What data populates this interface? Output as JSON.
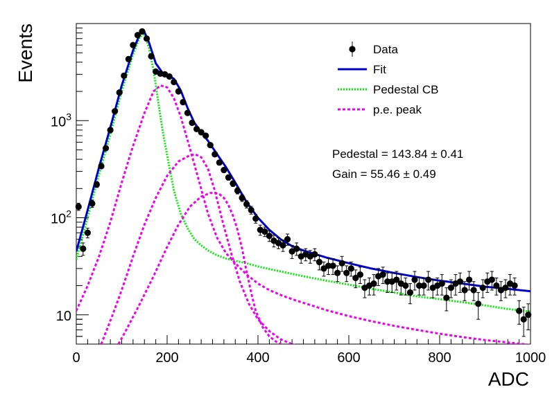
{
  "chart_data": {
    "type": "scatter",
    "title": "",
    "xlabel": "ADC",
    "ylabel": "Events",
    "xlim": [
      0,
      1000
    ],
    "ylim": [
      5,
      10000
    ],
    "y_scale": "log",
    "x_ticks": [
      "0",
      "200",
      "400",
      "600",
      "800",
      "1000"
    ],
    "y_ticks": [
      {
        "value": 10,
        "label": "10"
      },
      {
        "value": 100,
        "label": "10^2"
      },
      {
        "value": 1000,
        "label": "10^3"
      }
    ],
    "grid": false,
    "legend_position": "top-right",
    "legend": [
      {
        "name": "Data",
        "style": "marker",
        "color": "#000000"
      },
      {
        "name": "Fit",
        "style": "solid",
        "color": "#0000cc"
      },
      {
        "name": "Pedestal CB",
        "style": "dotted",
        "color": "#00ee00"
      },
      {
        "name": "p.e. peak",
        "style": "dashed",
        "color": "#ee00ee"
      }
    ],
    "annotations": [
      {
        "text": "Pedestal = 143.84",
        "pm": "±",
        "err": "0.41"
      },
      {
        "text": "Gain = 55.46",
        "pm": "±",
        "err": "0.49"
      }
    ],
    "series": [
      {
        "name": "Data",
        "kind": "points",
        "color": "#000000",
        "x": [
          5,
          15,
          25,
          35,
          45,
          55,
          65,
          75,
          85,
          95,
          105,
          115,
          125,
          135,
          145,
          155,
          165,
          175,
          185,
          195,
          205,
          215,
          225,
          235,
          245,
          255,
          265,
          275,
          285,
          295,
          305,
          315,
          325,
          335,
          345,
          355,
          365,
          375,
          385,
          395,
          405,
          415,
          425,
          435,
          445,
          455,
          465,
          475,
          485,
          495,
          505,
          515,
          525,
          535,
          545,
          555,
          565,
          575,
          585,
          595,
          605,
          615,
          625,
          635,
          645,
          655,
          665,
          675,
          685,
          695,
          705,
          715,
          725,
          735,
          745,
          755,
          765,
          775,
          785,
          795,
          805,
          815,
          825,
          835,
          845,
          855,
          865,
          875,
          885,
          895,
          905,
          915,
          925,
          935,
          945,
          955,
          965,
          975,
          985,
          995
        ],
        "y": [
          130,
          48,
          70,
          140,
          220,
          340,
          520,
          800,
          1250,
          1950,
          2900,
          4300,
          6000,
          7600,
          8300,
          7000,
          4600,
          3200,
          3050,
          3000,
          2850,
          2500,
          2000,
          1550,
          1200,
          950,
          820,
          760,
          700,
          560,
          450,
          370,
          310,
          260,
          225,
          190,
          160,
          138,
          120,
          98,
          75,
          72,
          65,
          58,
          55,
          52,
          60,
          45,
          48,
          40,
          42,
          40,
          42,
          35,
          30,
          32,
          32,
          27,
          34,
          27,
          30,
          24,
          26,
          19,
          20,
          21,
          25,
          26,
          22,
          22,
          23,
          21,
          20,
          17,
          23,
          20,
          20,
          23,
          19,
          20,
          21,
          15,
          19,
          21,
          22,
          18,
          23,
          18,
          13,
          19,
          22,
          23,
          20,
          18,
          19,
          21,
          20,
          11,
          9,
          10
        ],
        "yerr": [
          11,
          7,
          8,
          12,
          15,
          18,
          23,
          28,
          35,
          44,
          54,
          66,
          77,
          87,
          91,
          84,
          68,
          57,
          55,
          55,
          53,
          50,
          45,
          39,
          35,
          31,
          29,
          28,
          26,
          24,
          21,
          19,
          18,
          16,
          15,
          14,
          13,
          12,
          11,
          10,
          9,
          8,
          8,
          8,
          7,
          7,
          8,
          7,
          7,
          6,
          6,
          6,
          6,
          6,
          5,
          6,
          6,
          5,
          6,
          5,
          5,
          5,
          5,
          4,
          4,
          5,
          5,
          5,
          5,
          5,
          5,
          5,
          4,
          4,
          5,
          4,
          4,
          5,
          4,
          4,
          5,
          4,
          4,
          5,
          5,
          4,
          5,
          4,
          4,
          4,
          5,
          5,
          4,
          4,
          4,
          5,
          4,
          3,
          3,
          3
        ]
      },
      {
        "name": "Fit",
        "kind": "solid",
        "color": "#0000cc",
        "x": [
          0,
          25,
          50,
          75,
          100,
          125,
          140,
          150,
          160,
          175,
          190,
          200,
          215,
          230,
          245,
          260,
          275,
          290,
          310,
          330,
          350,
          375,
          400,
          425,
          450,
          475,
          500,
          550,
          600,
          650,
          700,
          750,
          800,
          850,
          900,
          950,
          1000
        ],
        "y": [
          45,
          120,
          330,
          850,
          2300,
          5300,
          7800,
          8200,
          6400,
          3900,
          3100,
          2950,
          2700,
          2050,
          1350,
          950,
          760,
          620,
          450,
          330,
          230,
          145,
          100,
          75,
          60,
          51,
          46,
          39,
          34,
          30,
          27,
          24.5,
          22.5,
          21,
          19.5,
          18.5,
          17.5
        ]
      },
      {
        "name": "Pedestal CB",
        "kind": "dotted",
        "color": "#00ee00",
        "x": [
          0,
          25,
          50,
          75,
          100,
          125,
          140,
          150,
          160,
          170,
          180,
          190,
          200,
          215,
          230,
          245,
          260,
          275,
          290,
          310,
          330,
          350,
          375,
          400,
          450,
          500,
          550,
          600,
          650,
          700,
          750,
          800,
          850,
          900,
          950,
          1000
        ],
        "y": [
          37,
          100,
          280,
          720,
          2000,
          4800,
          7300,
          7900,
          5600,
          3300,
          1600,
          800,
          440,
          190,
          110,
          78,
          60,
          52,
          46,
          41,
          38,
          36,
          34,
          31.5,
          28,
          25,
          22.5,
          20.5,
          18.5,
          17,
          15.5,
          14.5,
          13.5,
          12.5,
          11.5,
          10.8
        ]
      },
      {
        "name": "p.e. peak",
        "kind": "dashed",
        "color": "#ee00ee",
        "x": [
          0,
          25,
          50,
          75,
          100,
          125,
          150,
          170,
          185,
          200,
          215,
          230,
          250,
          270,
          290,
          310,
          330,
          350,
          375,
          400,
          425,
          450,
          475,
          500,
          550,
          600,
          650,
          700,
          750,
          800,
          850,
          900,
          950,
          1000
        ],
        "y": [
          11,
          20,
          40,
          90,
          230,
          550,
          1200,
          2000,
          2300,
          2200,
          1700,
          1100,
          520,
          240,
          110,
          62,
          43,
          34,
          26,
          21,
          18,
          16,
          14.5,
          13.3,
          11.2,
          9.7,
          8.6,
          7.7,
          7,
          6.4,
          5.9,
          5.5,
          5.2,
          4.9
        ]
      },
      {
        "name": "p.e. peak",
        "kind": "dashed",
        "color": "#ee00ee",
        "x": [
          55,
          80,
          100,
          125,
          150,
          175,
          200,
          225,
          250,
          262,
          275,
          290,
          305,
          320,
          340,
          360,
          380,
          400,
          425,
          450,
          475,
          500
        ],
        "y": [
          5,
          10,
          18,
          40,
          85,
          160,
          270,
          380,
          440,
          450,
          420,
          320,
          190,
          100,
          45,
          22,
          13,
          9,
          6.8,
          5.6,
          5,
          4.6
        ]
      },
      {
        "name": "p.e. peak",
        "kind": "dashed",
        "color": "#ee00ee",
        "x": [
          93,
          110,
          140,
          170,
          200,
          225,
          250,
          275,
          295,
          305,
          315,
          325,
          335,
          345,
          355,
          365,
          375,
          385,
          395,
          410,
          425,
          440,
          450
        ],
        "y": [
          5,
          7,
          13,
          25,
          50,
          85,
          130,
          165,
          180,
          180,
          175,
          160,
          135,
          105,
          75,
          48,
          28,
          17,
          11,
          7.5,
          6,
          5.3,
          5
        ]
      }
    ]
  }
}
